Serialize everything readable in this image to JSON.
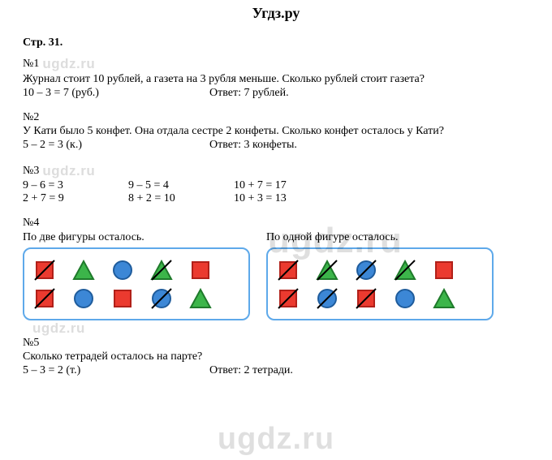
{
  "site_title": "Угдз.ру",
  "watermark_large": "ugdz.ru",
  "watermark_inline": "ugdz.ru",
  "page_ref": "Стр. 31.",
  "problems": {
    "p1": {
      "num": "№1",
      "text": "Журнал стоит 10 рублей, а газета на 3 рубля меньше. Сколько рублей стоит газета?",
      "calc": "10 – 3 = 7 (руб.)",
      "answer": "Ответ: 7 рублей."
    },
    "p2": {
      "num": "№2",
      "text": "У Кати было 5 конфет. Она отдала сестре 2 конфеты. Сколько конфет осталось у Кати?",
      "calc": "5 – 2 = 3 (к.)",
      "answer": "Ответ: 3 конфеты."
    },
    "p3": {
      "num": "№3",
      "row1": {
        "a": "9 – 6 = 3",
        "b": "9 – 5 = 4",
        "c": "10 + 7 = 17"
      },
      "row2": {
        "a": "2 + 7 = 9",
        "b": "8 + 2 = 10",
        "c": "10 + 3 = 13"
      }
    },
    "p4": {
      "num": "№4",
      "caption_left": "По две фигуры осталось.",
      "caption_right": "По одной фигуре осталось."
    },
    "p5": {
      "num": "№5",
      "text": "Сколько тетрадей осталось на парте?",
      "calc": "5 – 3 = 2 (т.)",
      "answer": "Ответ: 2 тетради."
    }
  },
  "shapes": {
    "colors": {
      "red_fill": "#eb3a2f",
      "red_stroke": "#b12019",
      "green_fill": "#3cb54a",
      "green_stroke": "#1f7a2b",
      "blue_fill": "#3c87d6",
      "blue_stroke": "#1f5c9c",
      "strike": "#000000"
    },
    "left_box": {
      "row1": [
        {
          "type": "square",
          "color": "red",
          "strike": true
        },
        {
          "type": "triangle",
          "color": "green",
          "strike": false
        },
        {
          "type": "circle",
          "color": "blue",
          "strike": false
        },
        {
          "type": "triangle",
          "color": "green",
          "strike": true
        },
        {
          "type": "square",
          "color": "red",
          "strike": false
        }
      ],
      "row2": [
        {
          "type": "square",
          "color": "red",
          "strike": true
        },
        {
          "type": "circle",
          "color": "blue",
          "strike": false
        },
        {
          "type": "square",
          "color": "red",
          "strike": false
        },
        {
          "type": "circle",
          "color": "blue",
          "strike": true
        },
        {
          "type": "triangle",
          "color": "green",
          "strike": false
        }
      ]
    },
    "right_box": {
      "row1": [
        {
          "type": "square",
          "color": "red",
          "strike": true
        },
        {
          "type": "triangle",
          "color": "green",
          "strike": true
        },
        {
          "type": "circle",
          "color": "blue",
          "strike": true
        },
        {
          "type": "triangle",
          "color": "green",
          "strike": true
        },
        {
          "type": "square",
          "color": "red",
          "strike": false
        }
      ],
      "row2": [
        {
          "type": "square",
          "color": "red",
          "strike": true
        },
        {
          "type": "circle",
          "color": "blue",
          "strike": true
        },
        {
          "type": "square",
          "color": "red",
          "strike": true
        },
        {
          "type": "circle",
          "color": "blue",
          "strike": false
        },
        {
          "type": "triangle",
          "color": "green",
          "strike": false
        }
      ]
    }
  }
}
